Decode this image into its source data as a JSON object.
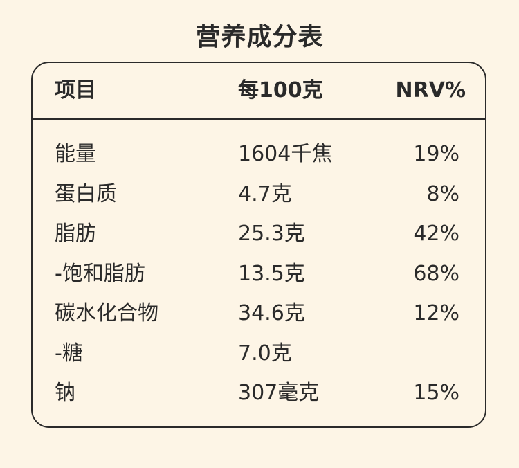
{
  "title": "营养成分表",
  "table": {
    "headers": {
      "item": "项目",
      "per100": "每100克",
      "nrv": "NRV%"
    },
    "rows": [
      {
        "item": "能量",
        "per100": "1604千焦",
        "nrv": "19%"
      },
      {
        "item": "蛋白质",
        "per100": "4.7克",
        "nrv": "8%"
      },
      {
        "item": "脂肪",
        "per100": "25.3克",
        "nrv": "42%"
      },
      {
        "item": "-饱和脂肪",
        "per100": "13.5克",
        "nrv": "68%"
      },
      {
        "item": "碳水化合物",
        "per100": "34.6克",
        "nrv": "12%"
      },
      {
        "item": "-糖",
        "per100": "7.0克",
        "nrv": ""
      },
      {
        "item": "钠",
        "per100": "307毫克",
        "nrv": "15%"
      }
    ]
  }
}
